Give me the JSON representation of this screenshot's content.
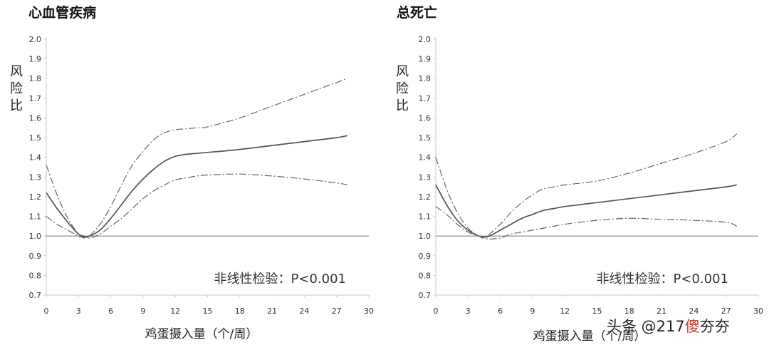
{
  "chart_data": [
    {
      "type": "line",
      "title": "心血管疾病",
      "ylabel": "风险比",
      "xlabel": "鸡蛋摄入量（个/周）",
      "xlim": [
        0,
        30
      ],
      "ylim": [
        0.7,
        2.0
      ],
      "xticks": [
        "0",
        "3",
        "6",
        "9",
        "12",
        "15",
        "18",
        "21",
        "24",
        "27",
        "30"
      ],
      "yticks": [
        "0.7",
        "0.8",
        "0.9",
        "1.0",
        "1.1",
        "1.2",
        "1.3",
        "1.4",
        "1.5",
        "1.6",
        "1.7",
        "1.8",
        "1.9",
        "2.0"
      ],
      "reference_line": 1.0,
      "annotation": "非线性检验：P<0.001",
      "series": [
        {
          "style": "solid",
          "x": [
            0,
            1,
            2,
            3,
            3.5,
            4,
            5,
            6,
            7,
            8,
            9,
            10,
            11,
            12,
            13,
            14,
            15,
            18,
            21,
            24,
            27,
            28
          ],
          "y": [
            1.22,
            1.14,
            1.07,
            1.01,
            1.0,
            1.0,
            1.03,
            1.09,
            1.16,
            1.23,
            1.29,
            1.34,
            1.38,
            1.405,
            1.415,
            1.42,
            1.425,
            1.44,
            1.46,
            1.48,
            1.5,
            1.51
          ]
        },
        {
          "style": "dashdot",
          "x": [
            0,
            1,
            2,
            3,
            3.5,
            4,
            5,
            6,
            7,
            8,
            9,
            10,
            11,
            12,
            13,
            14,
            15,
            18,
            21,
            24,
            27,
            28
          ],
          "y": [
            1.36,
            1.21,
            1.09,
            1.01,
            0.99,
            1.0,
            1.06,
            1.15,
            1.26,
            1.36,
            1.43,
            1.49,
            1.525,
            1.54,
            1.545,
            1.55,
            1.555,
            1.6,
            1.66,
            1.72,
            1.78,
            1.8
          ]
        },
        {
          "style": "dashdot",
          "x": [
            0,
            1,
            2,
            3,
            3.5,
            4,
            5,
            6,
            7,
            8,
            9,
            10,
            11,
            12,
            13,
            14,
            15,
            18,
            21,
            24,
            27,
            28
          ],
          "y": [
            1.1,
            1.06,
            1.03,
            1.0,
            0.995,
            0.99,
            1.01,
            1.05,
            1.09,
            1.14,
            1.19,
            1.23,
            1.26,
            1.285,
            1.295,
            1.305,
            1.31,
            1.315,
            1.305,
            1.29,
            1.27,
            1.26
          ]
        }
      ]
    },
    {
      "type": "line",
      "title": "总死亡",
      "ylabel": "风险比",
      "xlabel": "鸡蛋摄入量（个/周）",
      "xlim": [
        0,
        30
      ],
      "ylim": [
        0.7,
        2.0
      ],
      "xticks": [
        "0",
        "3",
        "6",
        "9",
        "12",
        "15",
        "18",
        "21",
        "24",
        "27",
        "30"
      ],
      "yticks": [
        "0.7",
        "0.8",
        "0.9",
        "1.0",
        "1.1",
        "1.2",
        "1.3",
        "1.4",
        "1.5",
        "1.6",
        "1.7",
        "1.8",
        "1.9",
        "2.0"
      ],
      "reference_line": 1.0,
      "annotation": "非线性检验：P<0.001",
      "series": [
        {
          "style": "solid",
          "x": [
            0,
            1,
            2,
            3,
            4,
            4.5,
            5,
            6,
            7,
            8,
            9,
            10,
            11,
            12,
            15,
            18,
            21,
            24,
            27,
            28
          ],
          "y": [
            1.26,
            1.16,
            1.08,
            1.03,
            1.0,
            0.995,
            1.0,
            1.03,
            1.06,
            1.09,
            1.11,
            1.13,
            1.14,
            1.15,
            1.17,
            1.19,
            1.21,
            1.23,
            1.25,
            1.26
          ]
        },
        {
          "style": "dashdot",
          "x": [
            0,
            1,
            2,
            3,
            4,
            4.5,
            5,
            6,
            7,
            8,
            9,
            10,
            11,
            12,
            15,
            18,
            21,
            24,
            27,
            28
          ],
          "y": [
            1.4,
            1.24,
            1.12,
            1.04,
            1.0,
            0.99,
            1.01,
            1.06,
            1.12,
            1.17,
            1.21,
            1.24,
            1.25,
            1.26,
            1.28,
            1.32,
            1.37,
            1.42,
            1.48,
            1.52
          ]
        },
        {
          "style": "dashdot",
          "x": [
            0,
            1,
            2,
            3,
            4,
            4.5,
            5,
            6,
            7,
            8,
            9,
            10,
            11,
            12,
            15,
            18,
            21,
            24,
            27,
            28
          ],
          "y": [
            1.15,
            1.11,
            1.06,
            1.02,
            1.0,
            0.99,
            0.985,
            0.99,
            1.01,
            1.02,
            1.03,
            1.04,
            1.05,
            1.06,
            1.08,
            1.09,
            1.085,
            1.08,
            1.07,
            1.05
          ]
        }
      ]
    }
  ],
  "watermark": {
    "prefix": "头条 @217",
    "accent": "傻",
    "suffix": "夯夯"
  }
}
